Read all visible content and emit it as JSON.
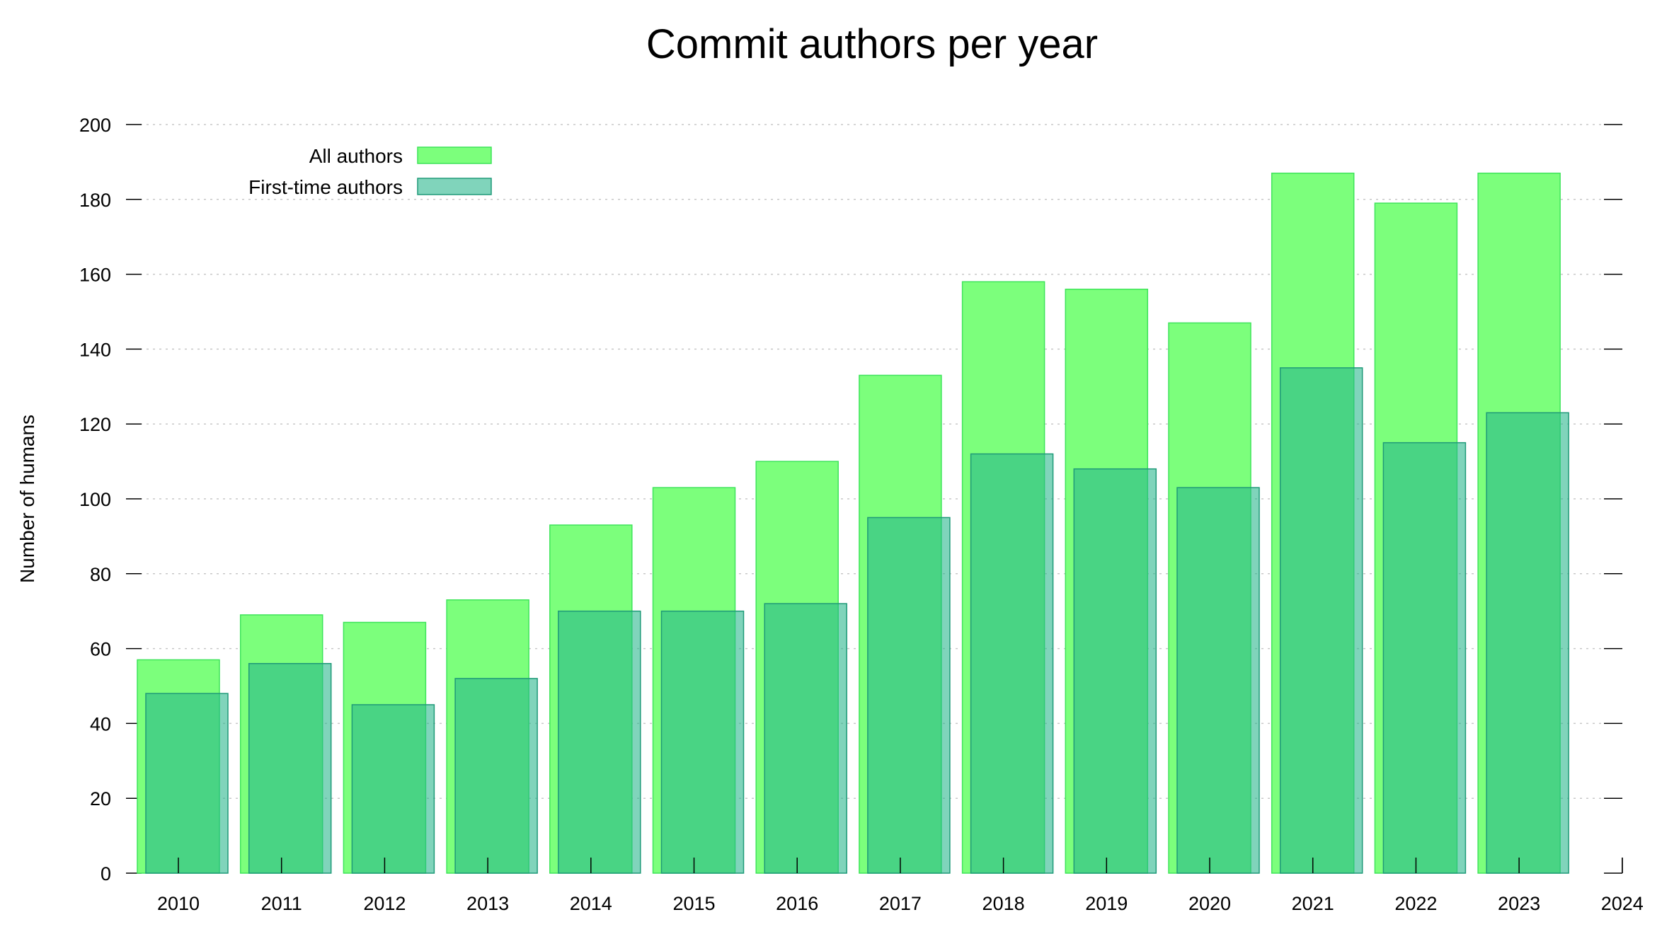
{
  "chart_data": {
    "type": "bar",
    "title": "Commit authors per year",
    "xlabel": "",
    "ylabel": "Number of humans",
    "x_ticks": [
      "2010",
      "2011",
      "2012",
      "2013",
      "2014",
      "2015",
      "2016",
      "2017",
      "2018",
      "2019",
      "2020",
      "2021",
      "2022",
      "2023",
      "2024"
    ],
    "categories": [
      "2010",
      "2011",
      "2012",
      "2013",
      "2014",
      "2015",
      "2016",
      "2017",
      "2018",
      "2019",
      "2020",
      "2021",
      "2022",
      "2023"
    ],
    "ylim": [
      0,
      200
    ],
    "y_ticks": [
      0,
      20,
      40,
      60,
      80,
      100,
      120,
      140,
      160,
      180,
      200
    ],
    "grid": true,
    "legend_position": "top-left",
    "series": [
      {
        "name": "All authors",
        "color": "#7cff7c",
        "stroke": "#3ee45a",
        "values": [
          57,
          69,
          67,
          73,
          93,
          103,
          110,
          133,
          158,
          156,
          147,
          187,
          179,
          187
        ]
      },
      {
        "name": "First-time authors",
        "color": "#25b58a",
        "stroke": "#1f9a78",
        "values": [
          48,
          56,
          45,
          52,
          70,
          70,
          72,
          95,
          112,
          108,
          103,
          135,
          115,
          123
        ]
      }
    ]
  }
}
